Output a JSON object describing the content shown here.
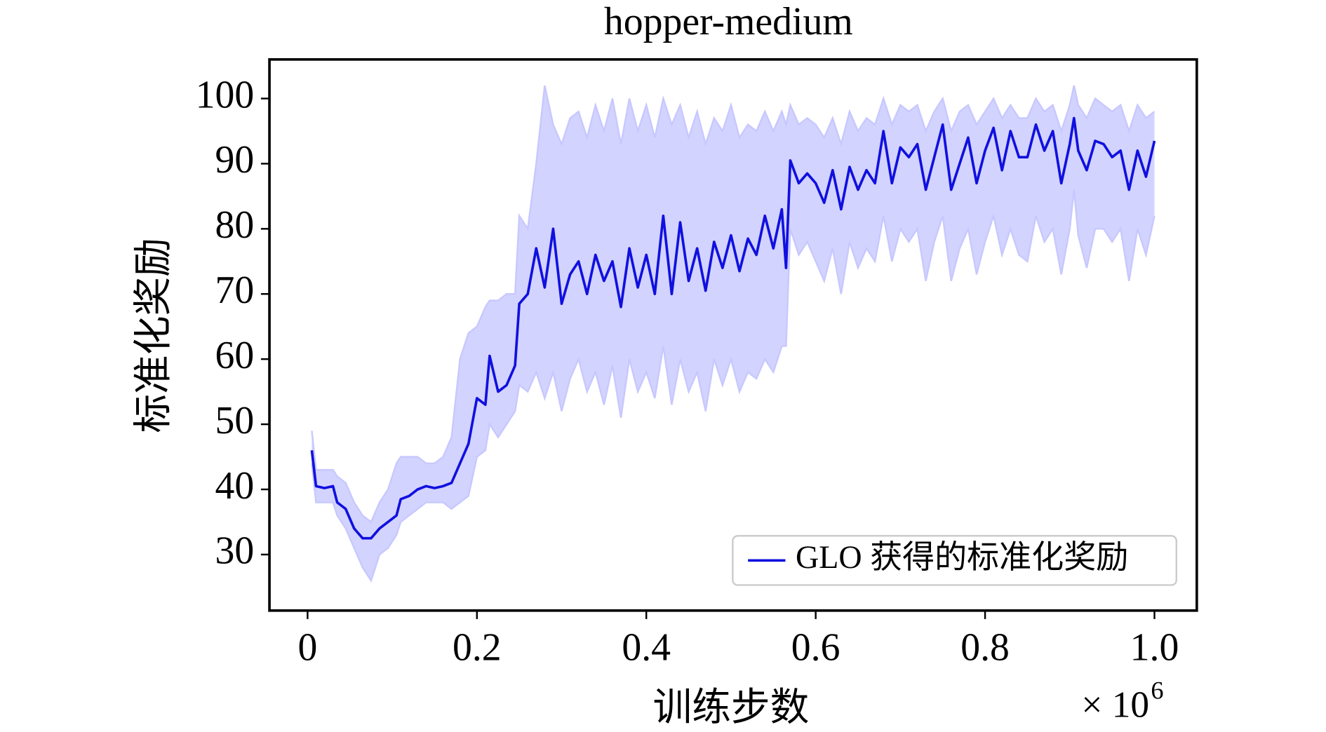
{
  "chart_data": {
    "type": "line",
    "title": "hopper-medium",
    "x_label": "训练步数",
    "y_label": "标准化奖励",
    "x_offset_base": "× 10",
    "x_offset_exponent": "6",
    "x": [
      0.005,
      0.01,
      0.02,
      0.03,
      0.035,
      0.045,
      0.055,
      0.065,
      0.075,
      0.085,
      0.095,
      0.105,
      0.11,
      0.12,
      0.13,
      0.14,
      0.15,
      0.16,
      0.17,
      0.18,
      0.19,
      0.2,
      0.21,
      0.215,
      0.225,
      0.235,
      0.245,
      0.25,
      0.26,
      0.27,
      0.28,
      0.29,
      0.3,
      0.31,
      0.32,
      0.33,
      0.34,
      0.35,
      0.36,
      0.37,
      0.38,
      0.39,
      0.4,
      0.41,
      0.42,
      0.43,
      0.44,
      0.45,
      0.46,
      0.47,
      0.48,
      0.49,
      0.5,
      0.51,
      0.52,
      0.53,
      0.54,
      0.55,
      0.56,
      0.565,
      0.57,
      0.58,
      0.59,
      0.6,
      0.61,
      0.62,
      0.63,
      0.64,
      0.65,
      0.66,
      0.67,
      0.68,
      0.69,
      0.7,
      0.71,
      0.72,
      0.73,
      0.74,
      0.75,
      0.76,
      0.77,
      0.78,
      0.79,
      0.8,
      0.81,
      0.82,
      0.83,
      0.84,
      0.85,
      0.86,
      0.87,
      0.88,
      0.89,
      0.9,
      0.905,
      0.91,
      0.92,
      0.93,
      0.94,
      0.95,
      0.96,
      0.97,
      0.98,
      0.99,
      1.0
    ],
    "series": [
      {
        "name": "GLO 获得的标准化奖励",
        "color": "#1010e0",
        "band_color": "#c8c8ff",
        "values": [
          46,
          40.5,
          40.2,
          40.5,
          38,
          37,
          34,
          32.5,
          32.5,
          34,
          35,
          36,
          38.5,
          39,
          40,
          40.5,
          40.2,
          40.5,
          41,
          44,
          47,
          54,
          53,
          60.5,
          55,
          56,
          59,
          68.5,
          70,
          77,
          71,
          80,
          68.5,
          73,
          75,
          70,
          76,
          72,
          75,
          68,
          77,
          71,
          76,
          70,
          82,
          70,
          81,
          72,
          77,
          70.5,
          78,
          74,
          79,
          73.5,
          78.5,
          76,
          82,
          77,
          83,
          74,
          90.5,
          87,
          88.5,
          87,
          84,
          89,
          83,
          89.5,
          86,
          89,
          87,
          95,
          87,
          92.5,
          91,
          93,
          86,
          91,
          96,
          86,
          90,
          94,
          87,
          92,
          95.5,
          89,
          95,
          91,
          91,
          96,
          92,
          95,
          87,
          93,
          97,
          92,
          89,
          93.5,
          93,
          91,
          92,
          86,
          92,
          88,
          93.5
        ],
        "lower": [
          44,
          38,
          38,
          38,
          36,
          34,
          31,
          28,
          26,
          30,
          31,
          33,
          35,
          36,
          37,
          38,
          38,
          38,
          37,
          38,
          39,
          45,
          46,
          50,
          48,
          50,
          52,
          56,
          55,
          58,
          54,
          58,
          52,
          57,
          60,
          55,
          58,
          53,
          59,
          51,
          60,
          55,
          58,
          54,
          62,
          53,
          60,
          55,
          58,
          52,
          60,
          56,
          60,
          55,
          58,
          57,
          60,
          58,
          62,
          62,
          80,
          76,
          78,
          75,
          72,
          77,
          70,
          78,
          74,
          77,
          75,
          82,
          75,
          80,
          78,
          80,
          72,
          78,
          82,
          72,
          77,
          80,
          73,
          78,
          82,
          76,
          80,
          76,
          75,
          82,
          78,
          80,
          73,
          80,
          86,
          79,
          74,
          80,
          80,
          78,
          80,
          72,
          80,
          76,
          82
        ],
        "upper": [
          49,
          43,
          43,
          43,
          42,
          41,
          38,
          36,
          35,
          38,
          40,
          44,
          45,
          45,
          45,
          44,
          44,
          45,
          48,
          60,
          64,
          65,
          68,
          69,
          69,
          70,
          70,
          82,
          80,
          90,
          102,
          96,
          93,
          97,
          98,
          94,
          99,
          95,
          100,
          93,
          100,
          95,
          99,
          94,
          100,
          96,
          99,
          94,
          98,
          93,
          97,
          95,
          99,
          94,
          96,
          95,
          98,
          95,
          98,
          96,
          99,
          96,
          97,
          96,
          94,
          97,
          93,
          98,
          95,
          97,
          96,
          100,
          96,
          99,
          98,
          99,
          95,
          98,
          100,
          95,
          98,
          99,
          96,
          98,
          100,
          97,
          99,
          97,
          97,
          100,
          98,
          99,
          95,
          99,
          102,
          99,
          97,
          100,
          99,
          98,
          99,
          95,
          99,
          97,
          98
        ]
      }
    ],
    "xlim": [
      -0.045,
      1.05
    ],
    "ylim": [
      21.4,
      106
    ],
    "xticks": [
      0,
      0.2,
      0.4,
      0.6,
      0.8,
      {
        "value": 1,
        "label": "1.0"
      }
    ],
    "yticks": [
      30,
      40,
      50,
      60,
      70,
      80,
      90,
      100
    ],
    "legend": "lower right"
  }
}
